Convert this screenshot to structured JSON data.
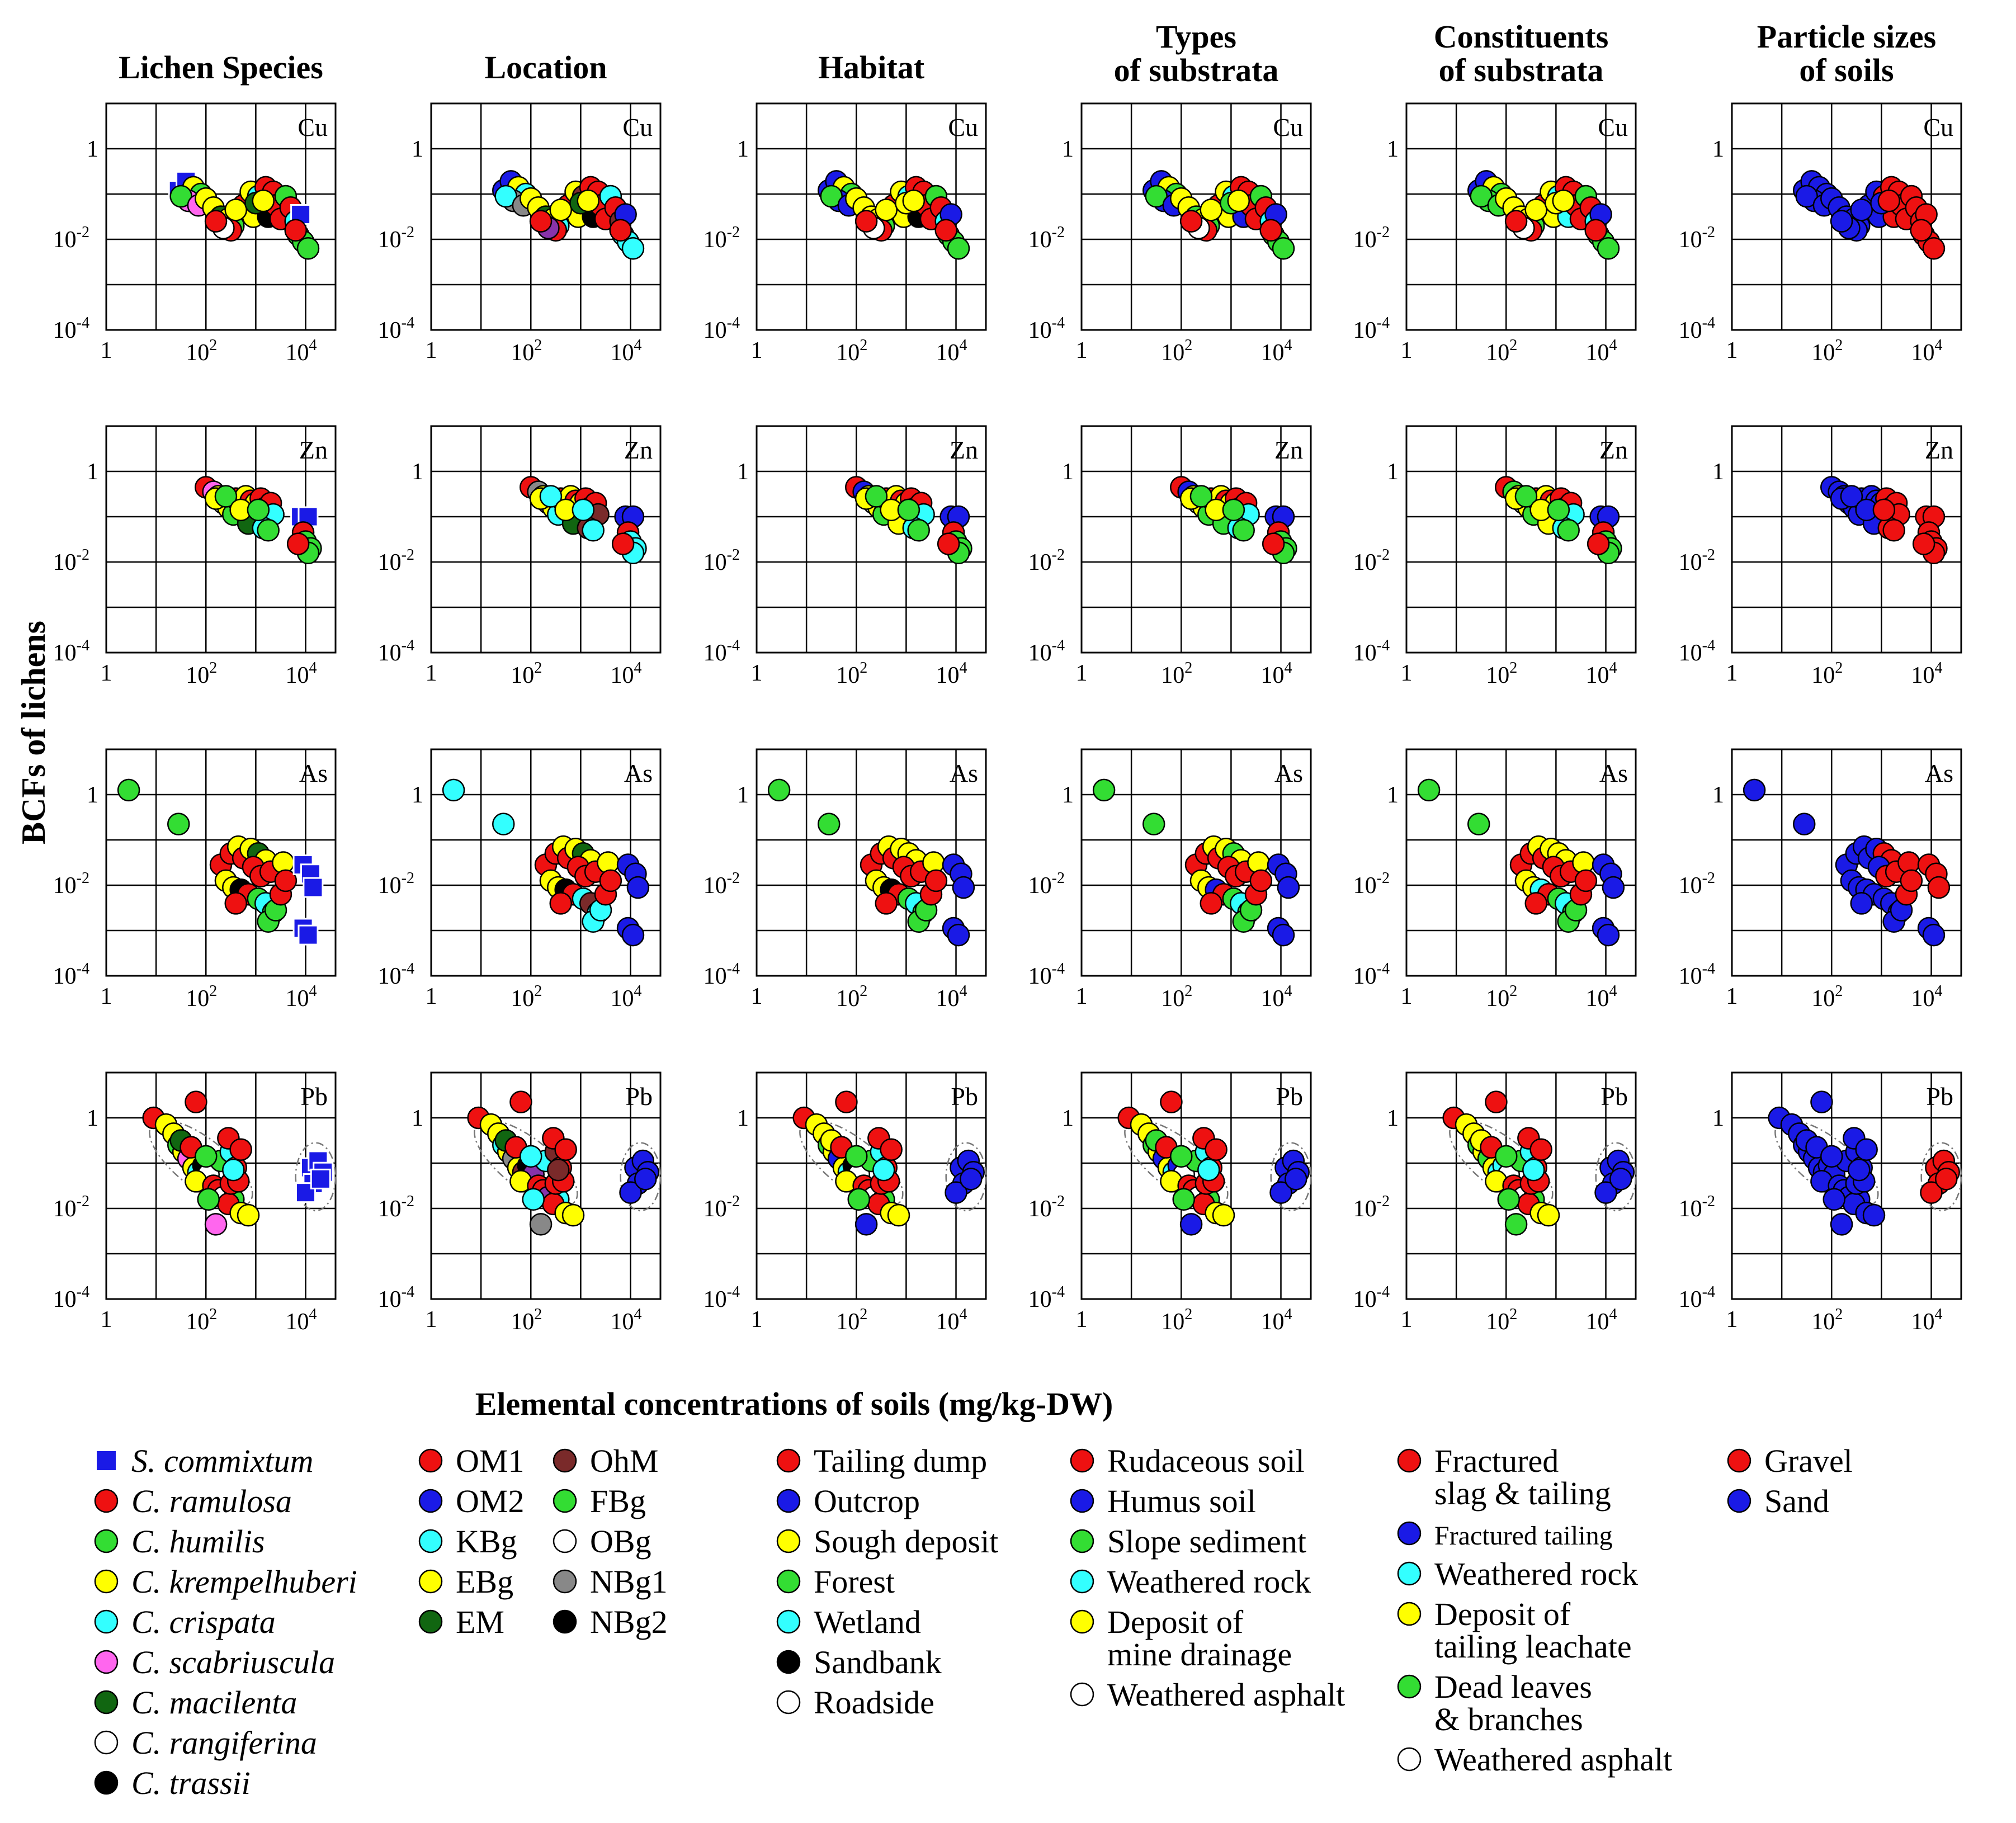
{
  "figure": {
    "y_axis_label": "BCFs of lichens",
    "x_axis_label": "Elemental concentrations of soils (mg/kg-DW)"
  },
  "columns": [
    {
      "key": "species",
      "title_lines": [
        "Lichen Species"
      ]
    },
    {
      "key": "location",
      "title_lines": [
        "Location"
      ]
    },
    {
      "key": "habitat",
      "title_lines": [
        "Habitat"
      ]
    },
    {
      "key": "types",
      "title_lines": [
        "Types",
        "of substrata"
      ]
    },
    {
      "key": "constituents",
      "title_lines": [
        "Constituents",
        "of substrata"
      ]
    },
    {
      "key": "particles",
      "title_lines": [
        "Particle sizes",
        "of soils"
      ]
    }
  ],
  "elements": [
    "Cu",
    "Zn",
    "As",
    "Pb"
  ],
  "ticks": {
    "x_major_exponents": [
      0,
      2,
      4
    ],
    "y_major_exponents": [
      0,
      -2,
      -4
    ],
    "x_labels": [
      "1",
      "10",
      "2",
      "10",
      "4"
    ],
    "y_labels": [
      "1",
      "10",
      "-2",
      "10",
      "-4"
    ]
  },
  "colors": {
    "red": "#ee1111",
    "blue": "#1a1ae6",
    "green": "#33dd33",
    "yellow": "#ffff00",
    "cyan": "#33ffff",
    "pink": "#ff66ee",
    "darkgreen": "#116611",
    "white": "#ffffff",
    "black": "#000000",
    "brown": "#7a2a2a",
    "gray": "#888888",
    "purple": "#8833aa"
  },
  "legends": [
    {
      "key": "species",
      "items": [
        {
          "label": "S. commixtum",
          "color": "blue",
          "marker": "square",
          "italic": true
        },
        {
          "label": "C. ramulosa",
          "color": "red",
          "marker": "circle",
          "italic": true
        },
        {
          "label": "C. humilis",
          "color": "green",
          "marker": "circle",
          "italic": true
        },
        {
          "label": "C. krempelhuberi",
          "color": "yellow",
          "marker": "circle",
          "italic": true
        },
        {
          "label": "C. crispata",
          "color": "cyan",
          "marker": "circle",
          "italic": true
        },
        {
          "label": "C. scabriuscula",
          "color": "pink",
          "marker": "circle",
          "italic": true
        },
        {
          "label": "C. macilenta",
          "color": "darkgreen",
          "marker": "circle",
          "italic": true
        },
        {
          "label": "C. rangiferina",
          "color": "white",
          "marker": "circle",
          "italic": true
        },
        {
          "label": "C. trassii",
          "color": "black",
          "marker": "circle",
          "italic": true
        }
      ]
    },
    {
      "key": "location1",
      "items": [
        {
          "label": "OM1",
          "color": "red",
          "marker": "circle"
        },
        {
          "label": "OM2",
          "color": "blue",
          "marker": "circle"
        },
        {
          "label": "KBg",
          "color": "cyan",
          "marker": "circle"
        },
        {
          "label": "EBg",
          "color": "yellow",
          "marker": "circle"
        },
        {
          "label": "EM",
          "color": "darkgreen",
          "marker": "circle"
        }
      ]
    },
    {
      "key": "location2",
      "items": [
        {
          "label": "OhM",
          "color": "brown",
          "marker": "circle"
        },
        {
          "label": "FBg",
          "color": "green",
          "marker": "circle"
        },
        {
          "label": "OBg",
          "color": "white",
          "marker": "circle"
        },
        {
          "label": "NBg1",
          "color": "gray",
          "marker": "circle"
        },
        {
          "label": "NBg2",
          "color": "black",
          "marker": "circle"
        }
      ]
    },
    {
      "key": "habitat",
      "items": [
        {
          "label": "Tailing dump",
          "color": "red",
          "marker": "circle"
        },
        {
          "label": "Outcrop",
          "color": "blue",
          "marker": "circle"
        },
        {
          "label": "Sough deposit",
          "color": "yellow",
          "marker": "circle"
        },
        {
          "label": "Forest",
          "color": "green",
          "marker": "circle"
        },
        {
          "label": "Wetland",
          "color": "cyan",
          "marker": "circle"
        },
        {
          "label": "Sandbank",
          "color": "black",
          "marker": "circle"
        },
        {
          "label": "Roadside",
          "color": "white",
          "marker": "circle"
        }
      ]
    },
    {
      "key": "types",
      "items": [
        {
          "label": "Rudaceous soil",
          "color": "red",
          "marker": "circle"
        },
        {
          "label": "Humus soil",
          "color": "blue",
          "marker": "circle"
        },
        {
          "label": "Slope sediment",
          "color": "green",
          "marker": "circle"
        },
        {
          "label": "Weathered rock",
          "color": "cyan",
          "marker": "circle"
        },
        {
          "label": "Deposit of\nmine drainage",
          "color": "yellow",
          "marker": "circle"
        },
        {
          "label": "Weathered asphalt",
          "color": "white",
          "marker": "circle"
        }
      ]
    },
    {
      "key": "constituents",
      "items": [
        {
          "label": "Fractured\nslag & tailing",
          "color": "red",
          "marker": "circle"
        },
        {
          "label": "Fractured tailing",
          "color": "blue",
          "marker": "circle",
          "small": true
        },
        {
          "label": "Weathered rock",
          "color": "cyan",
          "marker": "circle"
        },
        {
          "label": "Deposit of\ntailing leachate",
          "color": "yellow",
          "marker": "circle"
        },
        {
          "label": "Dead leaves\n& branches",
          "color": "green",
          "marker": "circle"
        },
        {
          "label": "Weathered asphalt",
          "color": "white",
          "marker": "circle"
        }
      ]
    },
    {
      "key": "particles",
      "items": [
        {
          "label": "Gravel",
          "color": "red",
          "marker": "circle"
        },
        {
          "label": "Sand",
          "color": "blue",
          "marker": "circle"
        }
      ]
    }
  ],
  "chart_data": {
    "type": "scatter",
    "title": "",
    "xlabel": "Elemental concentrations of soils (mg/kg-DW)",
    "ylabel": "BCFs of lichens",
    "xscale": "log10",
    "yscale": "log10",
    "xlim_log10": [
      0,
      4.6
    ],
    "ylim_log10": [
      -4,
      1
    ],
    "panels": {
      "Cu": [
        [
          1.45,
          -0.92,
          0
        ],
        [
          1.6,
          -0.72,
          0
        ],
        [
          1.75,
          -0.85,
          3
        ],
        [
          1.9,
          -1.0,
          2
        ],
        [
          1.65,
          -1.15,
          5
        ],
        [
          1.5,
          -1.05,
          2
        ],
        [
          1.85,
          -1.25,
          5
        ],
        [
          2.0,
          -1.1,
          3
        ],
        [
          2.15,
          -1.3,
          3
        ],
        [
          2.3,
          -1.5,
          6
        ],
        [
          2.45,
          -1.55,
          3
        ],
        [
          2.55,
          -1.7,
          2
        ],
        [
          2.5,
          -1.8,
          1
        ],
        [
          2.35,
          -1.75,
          7
        ],
        [
          2.75,
          -1.25,
          1
        ],
        [
          2.9,
          -0.95,
          3
        ],
        [
          3.05,
          -1.05,
          4
        ],
        [
          3.2,
          -0.85,
          1
        ],
        [
          3.35,
          -0.95,
          1
        ],
        [
          3.1,
          -1.4,
          1
        ],
        [
          2.95,
          -1.5,
          3
        ],
        [
          3.25,
          -1.5,
          8
        ],
        [
          3.4,
          -1.25,
          1
        ],
        [
          3.5,
          -1.55,
          1
        ],
        [
          3.6,
          -1.05,
          2
        ],
        [
          3.7,
          -1.3,
          1
        ],
        [
          3.8,
          -1.6,
          4
        ],
        [
          3.85,
          -1.9,
          2
        ],
        [
          3.95,
          -2.05,
          2
        ],
        [
          4.05,
          -2.2,
          2
        ],
        [
          3.9,
          -1.45,
          0
        ],
        [
          3.8,
          -1.8,
          1
        ],
        [
          2.2,
          -1.6,
          1
        ],
        [
          2.6,
          -1.35,
          3
        ],
        [
          3.0,
          -1.2,
          6
        ],
        [
          3.15,
          -1.15,
          3
        ]
      ],
      "Zn": [
        [
          2.0,
          -0.35,
          1
        ],
        [
          2.15,
          -0.45,
          5
        ],
        [
          2.25,
          -0.55,
          3
        ],
        [
          2.35,
          -0.7,
          7
        ],
        [
          2.45,
          -0.8,
          3
        ],
        [
          2.55,
          -0.95,
          2
        ],
        [
          2.6,
          -0.6,
          1
        ],
        [
          2.7,
          -0.75,
          2
        ],
        [
          2.8,
          -0.55,
          3
        ],
        [
          2.9,
          -0.65,
          1
        ],
        [
          3.0,
          -0.7,
          3
        ],
        [
          3.1,
          -0.6,
          1
        ],
        [
          3.2,
          -0.8,
          8
        ],
        [
          3.3,
          -0.7,
          1
        ],
        [
          3.35,
          -0.95,
          4
        ],
        [
          3.0,
          -1.0,
          1
        ],
        [
          2.85,
          -1.15,
          6
        ],
        [
          3.15,
          -1.25,
          4
        ],
        [
          3.25,
          -1.3,
          2
        ],
        [
          2.2,
          -0.6,
          3
        ],
        [
          2.4,
          -0.55,
          2
        ],
        [
          2.7,
          -0.85,
          3
        ],
        [
          3.05,
          -0.85,
          2
        ],
        [
          3.9,
          -1.0,
          0
        ],
        [
          4.05,
          -1.0,
          0
        ],
        [
          3.95,
          -1.35,
          1
        ],
        [
          4.0,
          -1.55,
          2
        ],
        [
          4.1,
          -1.7,
          2
        ],
        [
          4.05,
          -1.8,
          2
        ],
        [
          3.85,
          -1.6,
          1
        ]
      ],
      "As": [
        [
          0.45,
          0.1,
          2
        ],
        [
          1.45,
          -0.65,
          2
        ],
        [
          2.3,
          -1.55,
          1
        ],
        [
          2.5,
          -1.3,
          1
        ],
        [
          2.65,
          -1.15,
          3
        ],
        [
          2.75,
          -1.4,
          1
        ],
        [
          2.9,
          -1.2,
          3
        ],
        [
          3.05,
          -1.3,
          6
        ],
        [
          3.2,
          -1.45,
          3
        ],
        [
          2.95,
          -1.6,
          1
        ],
        [
          3.1,
          -1.8,
          1
        ],
        [
          3.3,
          -1.7,
          1
        ],
        [
          2.4,
          -1.9,
          3
        ],
        [
          2.55,
          -2.05,
          3
        ],
        [
          2.7,
          -2.1,
          8
        ],
        [
          2.85,
          -2.2,
          1
        ],
        [
          3.05,
          -2.3,
          2
        ],
        [
          3.2,
          -2.4,
          4
        ],
        [
          3.35,
          -2.6,
          2
        ],
        [
          3.25,
          -2.8,
          2
        ],
        [
          3.4,
          -2.55,
          2
        ],
        [
          3.5,
          -2.2,
          1
        ],
        [
          3.55,
          -1.5,
          3
        ],
        [
          3.6,
          -1.9,
          1
        ],
        [
          2.6,
          -2.4,
          1
        ],
        [
          3.95,
          -1.55,
          0
        ],
        [
          4.1,
          -1.75,
          0
        ],
        [
          4.15,
          -2.05,
          0
        ],
        [
          3.95,
          -2.95,
          0
        ],
        [
          4.05,
          -3.1,
          0
        ]
      ],
      "Pb": [
        [
          0.95,
          0.0,
          1
        ],
        [
          1.2,
          -0.15,
          3
        ],
        [
          1.35,
          -0.35,
          3
        ],
        [
          1.45,
          -0.6,
          2
        ],
        [
          1.55,
          -0.75,
          3
        ],
        [
          1.65,
          -0.9,
          5
        ],
        [
          1.75,
          -1.1,
          3
        ],
        [
          1.85,
          -1.2,
          4
        ],
        [
          1.95,
          -1.05,
          8
        ],
        [
          2.05,
          -1.25,
          7
        ],
        [
          1.8,
          -1.4,
          3
        ],
        [
          2.15,
          -1.5,
          1
        ],
        [
          2.25,
          -1.6,
          1
        ],
        [
          2.35,
          -1.75,
          7
        ],
        [
          2.55,
          -1.8,
          2
        ],
        [
          2.45,
          -1.9,
          1
        ],
        [
          2.7,
          -2.1,
          3
        ],
        [
          2.85,
          -2.15,
          3
        ],
        [
          2.05,
          -1.8,
          2
        ],
        [
          2.5,
          -1.45,
          1
        ],
        [
          2.3,
          -0.95,
          2
        ],
        [
          2.5,
          -0.75,
          4
        ],
        [
          2.6,
          -1.1,
          1
        ],
        [
          2.65,
          -1.4,
          1
        ],
        [
          1.8,
          0.35,
          1
        ],
        [
          2.45,
          -0.45,
          1
        ],
        [
          2.7,
          -0.7,
          1
        ],
        [
          2.2,
          -2.35,
          5
        ],
        [
          1.5,
          -0.5,
          6
        ],
        [
          1.7,
          -0.65,
          1
        ],
        [
          2.0,
          -0.85,
          2
        ],
        [
          2.55,
          -1.15,
          4
        ],
        [
          4.1,
          -1.1,
          0
        ],
        [
          4.25,
          -0.95,
          0
        ],
        [
          4.35,
          -1.2,
          0
        ],
        [
          4.15,
          -1.45,
          0
        ],
        [
          4.0,
          -1.65,
          0
        ],
        [
          4.3,
          -1.35,
          0
        ]
      ]
    },
    "point_format": [
      "log10_x",
      "log10_y",
      "group_index"
    ],
    "ellipses_Pb": [
      {
        "cx_log10": 1.9,
        "cy_log10": -1.0,
        "rx_log10": 1.25,
        "ry_log10": 0.55,
        "angle_deg": 38
      },
      {
        "cx_log10": 4.2,
        "cy_log10": -1.3,
        "rx_log10": 0.4,
        "ry_log10": 0.75,
        "angle_deg": 0
      }
    ],
    "panel_variants": {
      "species": {
        "scheme": "species"
      },
      "location": {
        "scheme": "location"
      },
      "habitat": {
        "scheme": "habitat"
      },
      "types": {
        "scheme": "types"
      },
      "constituents": {
        "scheme": "constituents"
      },
      "particles": {
        "scheme": "particles"
      }
    }
  }
}
